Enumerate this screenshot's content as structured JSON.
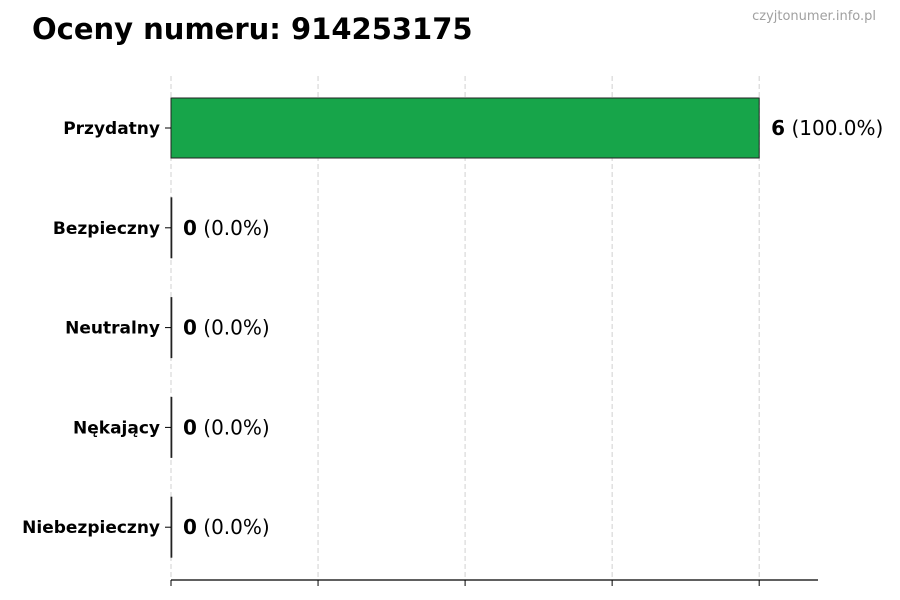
{
  "title": "Oceny numeru: 914253175",
  "watermark": "czyjtonumer.info.pl",
  "chart_data": {
    "type": "bar",
    "orientation": "horizontal",
    "title": "Oceny numeru: 914253175",
    "categories": [
      "Przydatny",
      "Bezpieczny",
      "Neutralny",
      "Nękający",
      "Niebezpieczny"
    ],
    "values": [
      6,
      0,
      0,
      0,
      0
    ],
    "percent_labels": [
      "(100.0%)",
      "(0.0%)",
      "(0.0%)",
      "(0.0%)",
      "(0.0%)"
    ],
    "colors": [
      "#17a54a",
      "#17a54a",
      "#17a54a",
      "#17a54a",
      "#17a54a"
    ],
    "xlim": [
      0,
      6.6
    ],
    "xticks": [
      0,
      1.5,
      3,
      4.5,
      6
    ],
    "xtick_labels_shown": false,
    "grid": "vertical dashed",
    "xlabel": "",
    "ylabel": ""
  }
}
